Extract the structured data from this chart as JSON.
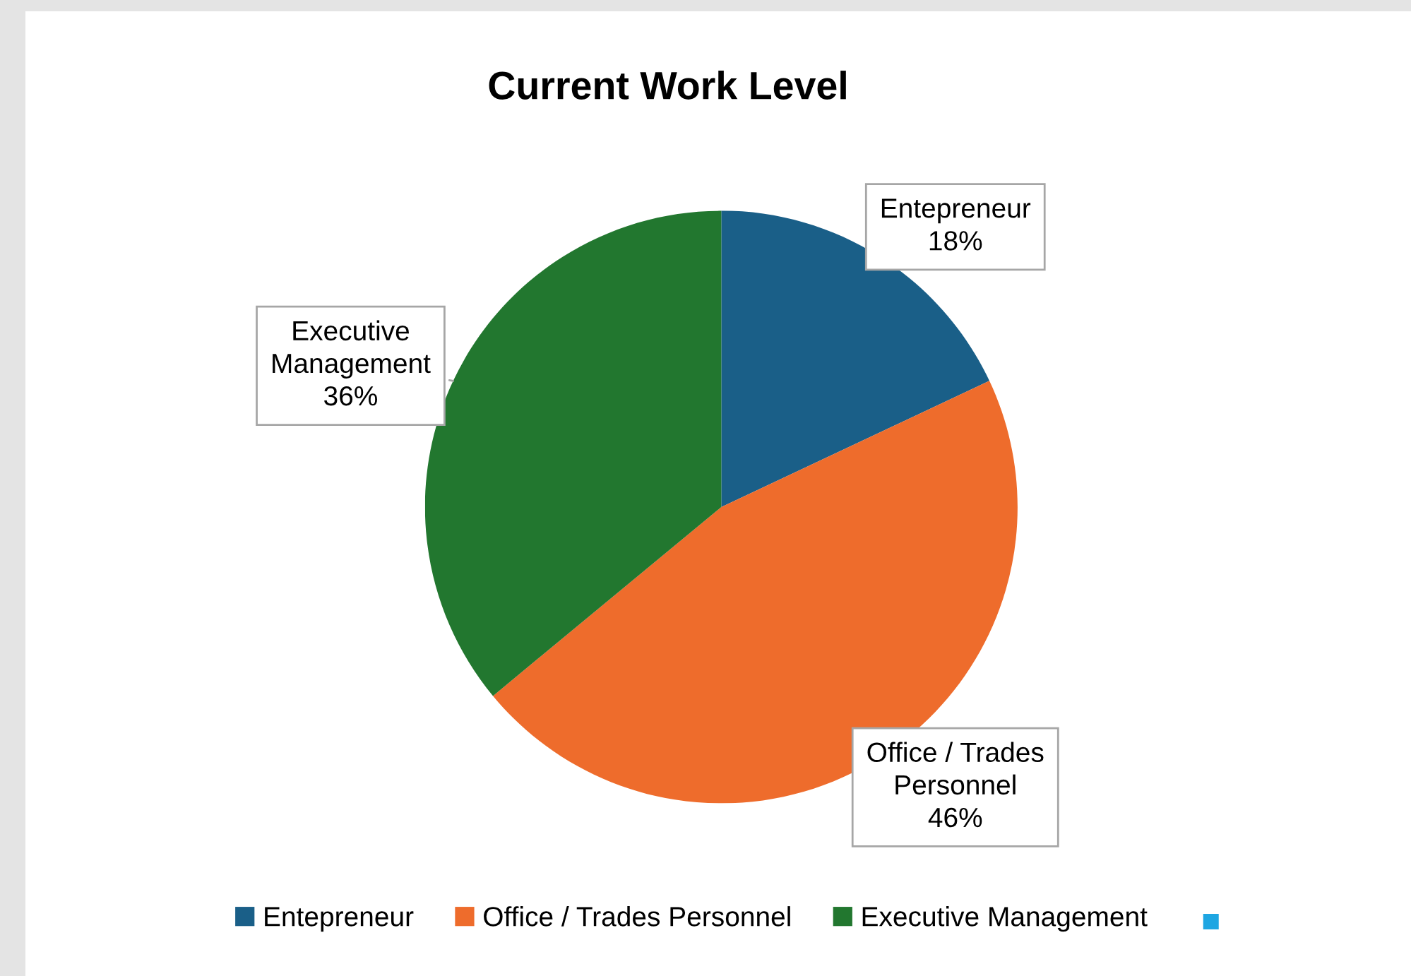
{
  "chart_data": {
    "type": "pie",
    "title": "Current Work Level",
    "categories": [
      "Entepreneur",
      "Office / Trades Personnel",
      "Executive Management"
    ],
    "values": [
      18,
      46,
      36
    ],
    "value_labels": [
      "18%",
      "46%",
      "36%"
    ],
    "colors": [
      "#1a5f88",
      "#ee6c2c",
      "#22772f"
    ],
    "legend": "bottom"
  }
}
